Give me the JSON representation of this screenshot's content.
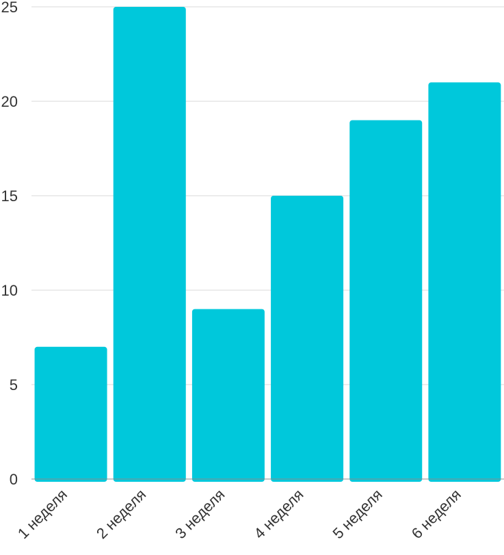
{
  "chart_data": {
    "type": "bar",
    "categories": [
      "1 неделя",
      "2 неделя",
      "3 неделя",
      "4 неделя",
      "5 неделя",
      "6 неделя"
    ],
    "values": [
      7,
      25,
      9,
      15,
      19,
      21
    ],
    "title": "",
    "xlabel": "",
    "ylabel": "",
    "ylim": [
      0,
      25
    ],
    "yticks": [
      0,
      5,
      10,
      15,
      20,
      25
    ],
    "grid": true,
    "colors": {
      "bar": "#00C8DB"
    }
  }
}
